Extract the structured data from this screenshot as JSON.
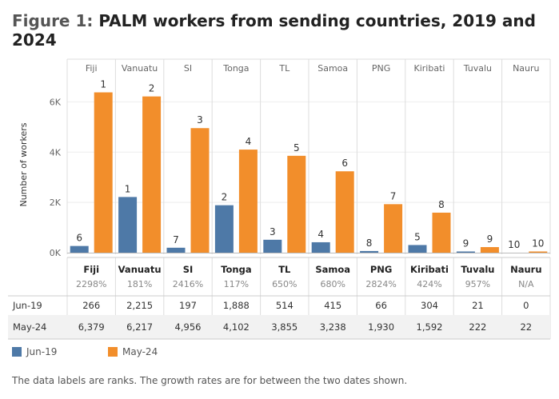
{
  "title": {
    "prefix": "Figure 1:",
    "text": "PALM workers from sending countries, 2019 and 2024"
  },
  "note": "The data labels are ranks. The growth rates are for between the two dates shown.",
  "colors": {
    "jun19": "#4e79a7",
    "may24": "#f28e2b"
  },
  "chart_data": {
    "type": "bar",
    "title": "PALM workers from sending countries, 2019 and 2024",
    "xlabel": "",
    "ylabel": "Number of workers",
    "ylim": [
      0,
      7000
    ],
    "yticks": [
      "0K",
      "2K",
      "4K",
      "6K"
    ],
    "ytick_values": [
      0,
      2000,
      4000,
      6000
    ],
    "categories": [
      "Fiji",
      "Vanuatu",
      "SI",
      "Tonga",
      "TL",
      "Samoa",
      "PNG",
      "Kiribati",
      "Tuvalu",
      "Nauru"
    ],
    "growth": [
      "2298%",
      "181%",
      "2416%",
      "117%",
      "650%",
      "680%",
      "2824%",
      "424%",
      "957%",
      "N/A"
    ],
    "series": [
      {
        "name": "Jun-19",
        "values": [
          266,
          2215,
          197,
          1888,
          514,
          415,
          66,
          304,
          21,
          0
        ],
        "labels": [
          "266",
          "2,215",
          "197",
          "1,888",
          "514",
          "415",
          "66",
          "304",
          "21",
          "0"
        ],
        "ranks": [
          "6",
          "1",
          "7",
          "2",
          "3",
          "4",
          "8",
          "5",
          "9",
          "10"
        ]
      },
      {
        "name": "May-24",
        "values": [
          6379,
          6217,
          4956,
          4102,
          3855,
          3238,
          1930,
          1592,
          222,
          22
        ],
        "labels": [
          "6,379",
          "6,217",
          "4,956",
          "4,102",
          "3,855",
          "3,238",
          "1,930",
          "1,592",
          "222",
          "22"
        ],
        "ranks": [
          "1",
          "2",
          "3",
          "4",
          "5",
          "6",
          "7",
          "8",
          "9",
          "10"
        ]
      }
    ],
    "legend": [
      "Jun-19",
      "May-24"
    ]
  }
}
